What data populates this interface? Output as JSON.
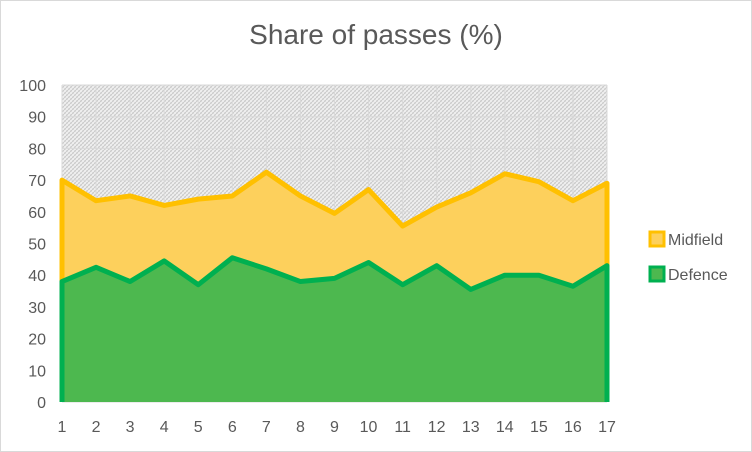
{
  "chart_data": {
    "type": "area",
    "title": "Share of passes (%)",
    "xlabel": "",
    "ylabel": "",
    "x": [
      1,
      2,
      3,
      4,
      5,
      6,
      7,
      8,
      9,
      10,
      11,
      12,
      13,
      14,
      15,
      16,
      17
    ],
    "ylim": [
      0,
      100
    ],
    "yticks": [
      0,
      10,
      20,
      30,
      40,
      50,
      60,
      70,
      80,
      90,
      100
    ],
    "grid": "both",
    "stacked_cumulative": true,
    "legend_position": "right",
    "background_series": {
      "value": 100,
      "colors": {
        "fill": "#f2f2f2",
        "hatch": "#bfbfbf"
      }
    },
    "series": [
      {
        "name": "Midfield",
        "values": [
          70,
          63.5,
          65,
          62,
          64,
          65,
          72.5,
          65,
          59.5,
          67,
          55.5,
          61.5,
          66,
          72,
          69.5,
          63.5,
          69
        ],
        "colors": {
          "fill": "#fdd05c",
          "line": "#ffc000"
        }
      },
      {
        "name": "Defence",
        "values": [
          38,
          42.5,
          38,
          44.5,
          37,
          45.5,
          42,
          38,
          39,
          44,
          37,
          43,
          35.5,
          40,
          40,
          36.5,
          43
        ],
        "colors": {
          "fill": "#4db84f",
          "line": "#00b050"
        }
      }
    ]
  }
}
